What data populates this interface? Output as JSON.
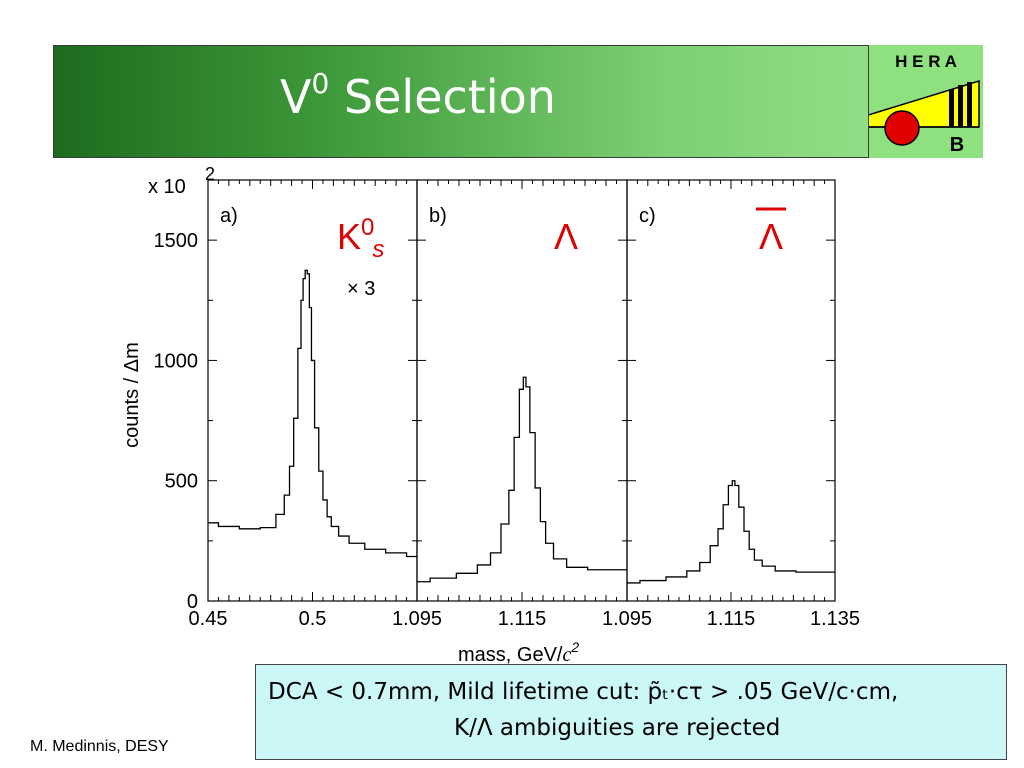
{
  "slide": {
    "title_main": "V",
    "title_sup": "0",
    "title_rest": " Selection",
    "footer": "M. Medinnis, DESY"
  },
  "logo": {
    "top_text": "H E R A",
    "bottom_text": "B"
  },
  "infobox": {
    "line1": "DCA < 0.7mm, Mild lifetime cut: p̃ₜ·cτ > .05 GeV/c·cm,",
    "line2": "K/Λ ambiguities are rejected"
  },
  "colors": {
    "title": "#ffffff",
    "particle_label": "#e00000",
    "histogram": "#000000",
    "infobox_bg": "#ccf7f7",
    "banner_dark": "#1e6b1e",
    "banner_light": "#9ee592"
  },
  "chart_data": {
    "type": "line",
    "style": "histogram",
    "ylabel": "counts / Δm",
    "y_multiplier": "x 10",
    "y_multiplier_exp": "2",
    "xlabel": "mass, GeV/",
    "xlabel_unit": "c",
    "xlabel_unit_exp": "2",
    "ylim": [
      0,
      1500
    ],
    "y_ticks": [
      0,
      500,
      1000,
      1500
    ],
    "panels": [
      {
        "label": "a)",
        "particle": "K",
        "particle_sup": "0",
        "particle_sub": "s",
        "scale_note": "× 3",
        "xlim": [
          0.45,
          0.55
        ],
        "x_ticks": [
          0.45,
          0.5
        ],
        "x_tick_labels": [
          "0.45",
          "0.5"
        ],
        "peak_mass": 0.497,
        "peak_counts": 1375,
        "series": [
          {
            "x": [
              0.45,
              0.46,
              0.47,
              0.48,
              0.485,
              0.488,
              0.49,
              0.492,
              0.494,
              0.495,
              0.496,
              0.497,
              0.498,
              0.499,
              0.5,
              0.502,
              0.504,
              0.506,
              0.508,
              0.51,
              0.515,
              0.52,
              0.53,
              0.54,
              0.55
            ],
            "y": [
              325,
              310,
              300,
              305,
              360,
              440,
              560,
              760,
              1050,
              1250,
              1340,
              1375,
              1360,
              1220,
              1000,
              720,
              540,
              420,
              350,
              310,
              270,
              240,
              215,
              200,
              185
            ]
          }
        ]
      },
      {
        "label": "b)",
        "particle": "Λ",
        "particle_sup": "",
        "particle_sub": "",
        "scale_note": "",
        "xlim": [
          1.095,
          1.135
        ],
        "x_ticks": [
          1.095,
          1.115
        ],
        "x_tick_labels": [
          "1.095",
          "1.115"
        ],
        "peak_mass": 1.1155,
        "peak_counts": 930,
        "series": [
          {
            "x": [
              1.095,
              1.1,
              1.105,
              1.108,
              1.11,
              1.112,
              1.113,
              1.114,
              1.115,
              1.1155,
              1.116,
              1.117,
              1.118,
              1.119,
              1.12,
              1.122,
              1.125,
              1.13,
              1.135
            ],
            "y": [
              80,
              95,
              115,
              150,
              200,
              320,
              460,
              680,
              880,
              930,
              890,
              700,
              470,
              330,
              240,
              175,
              140,
              130,
              130
            ]
          }
        ]
      },
      {
        "label": "c)",
        "particle": "Λ",
        "particle_sup": "",
        "particle_sub": "",
        "particle_bar": true,
        "scale_note": "",
        "xlim": [
          1.095,
          1.135
        ],
        "x_ticks": [
          1.095,
          1.115,
          1.135
        ],
        "x_tick_labels": [
          "1.095",
          "1.115",
          "1.135"
        ],
        "peak_mass": 1.1155,
        "peak_counts": 500,
        "series": [
          {
            "x": [
              1.095,
              1.1,
              1.105,
              1.108,
              1.11,
              1.112,
              1.113,
              1.114,
              1.115,
              1.1155,
              1.116,
              1.117,
              1.118,
              1.119,
              1.12,
              1.122,
              1.125,
              1.13,
              1.135
            ],
            "y": [
              75,
              85,
              100,
              125,
              160,
              230,
              300,
              400,
              480,
              500,
              480,
              390,
              290,
              215,
              170,
              145,
              125,
              120,
              120
            ]
          }
        ]
      }
    ]
  }
}
